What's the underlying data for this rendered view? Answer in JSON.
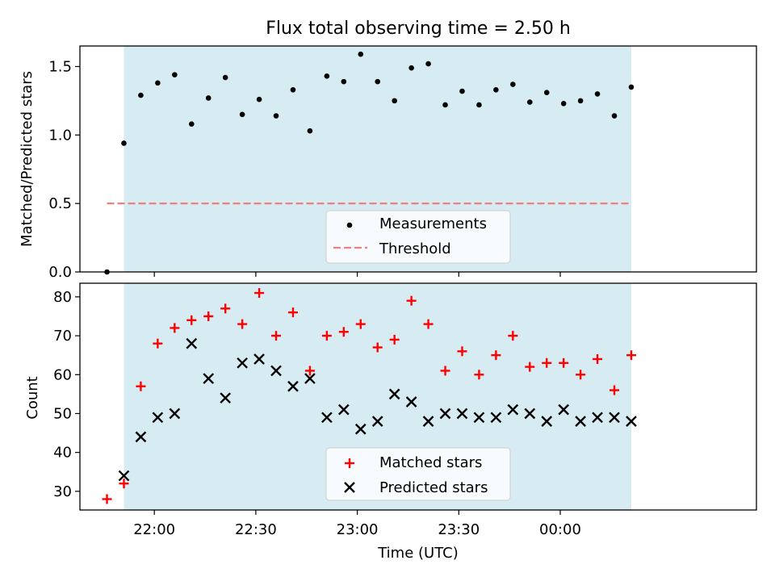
{
  "title": "Flux total observing time = 2.50 h",
  "colors": {
    "shade": "#add8e6",
    "measurement": "#000000",
    "threshold": "#f08080",
    "matched": "#ff0000",
    "predicted": "#000000"
  },
  "chart_data": [
    {
      "type": "scatter",
      "title": "Flux total observing time = 2.50 h",
      "xlabel": "",
      "ylabel": "Matched/Predicted stars",
      "xlim": [
        "21:38",
        "00:58"
      ],
      "ylim": [
        0,
        1.65
      ],
      "yticks": [
        0.0,
        0.5,
        1.0,
        1.5
      ],
      "ytick_labels": [
        "0.0",
        "0.5",
        "1.0",
        "1.5"
      ],
      "shaded_x_range": [
        "21:51",
        "00:21"
      ],
      "threshold": {
        "value": 0.5,
        "x_range": [
          "21:46",
          "00:21"
        ]
      },
      "legend": {
        "placement": "lower-center",
        "entries": [
          "Measurements",
          "Threshold"
        ]
      },
      "series": [
        {
          "name": "Measurements",
          "x": [
            "21:46",
            "21:51",
            "21:56",
            "22:01",
            "22:06",
            "22:11",
            "22:16",
            "22:21",
            "22:26",
            "22:31",
            "22:36",
            "22:41",
            "22:46",
            "22:51",
            "22:56",
            "23:01",
            "23:06",
            "23:11",
            "23:16",
            "23:21",
            "23:26",
            "23:31",
            "23:36",
            "23:41",
            "23:46",
            "23:51",
            "23:56",
            "00:01",
            "00:06",
            "00:11",
            "00:16",
            "00:21"
          ],
          "y": [
            0.0,
            0.94,
            1.29,
            1.38,
            1.44,
            1.08,
            1.27,
            1.42,
            1.15,
            1.26,
            1.14,
            1.33,
            1.03,
            1.43,
            1.39,
            1.59,
            1.39,
            1.25,
            1.49,
            1.52,
            1.22,
            1.32,
            1.22,
            1.33,
            1.37,
            1.24,
            1.31,
            1.23,
            1.25,
            1.3,
            1.14,
            1.35
          ]
        }
      ]
    },
    {
      "type": "scatter",
      "title": "",
      "xlabel": "Time (UTC)",
      "ylabel": "Count",
      "xlim": [
        "21:38",
        "00:58"
      ],
      "ylim": [
        25.2,
        83.5
      ],
      "yticks": [
        30,
        40,
        50,
        60,
        70,
        80
      ],
      "ytick_labels": [
        "30",
        "40",
        "50",
        "60",
        "70",
        "80"
      ],
      "xticks": [
        "22:00",
        "22:30",
        "23:00",
        "23:30",
        "00:00"
      ],
      "xtick_labels": [
        "22:00",
        "22:30",
        "23:00",
        "23:30",
        "00:00"
      ],
      "shaded_x_range": [
        "21:51",
        "00:21"
      ],
      "legend": {
        "placement": "lower-center",
        "entries": [
          "Matched stars",
          "Predicted stars"
        ]
      },
      "series": [
        {
          "name": "Matched stars",
          "x": [
            "21:46",
            "21:51",
            "21:56",
            "22:01",
            "22:06",
            "22:11",
            "22:16",
            "22:21",
            "22:26",
            "22:31",
            "22:36",
            "22:41",
            "22:46",
            "22:51",
            "22:56",
            "23:01",
            "23:06",
            "23:11",
            "23:16",
            "23:21",
            "23:26",
            "23:31",
            "23:36",
            "23:41",
            "23:46",
            "23:51",
            "23:56",
            "00:01",
            "00:06",
            "00:11",
            "00:16",
            "00:21"
          ],
          "y": [
            28,
            32,
            57,
            68,
            72,
            74,
            75,
            77,
            73,
            81,
            70,
            76,
            61,
            70,
            71,
            73,
            67,
            69,
            79,
            73,
            61,
            66,
            60,
            65,
            70,
            62,
            63,
            63,
            60,
            64,
            56,
            65
          ]
        },
        {
          "name": "Predicted stars",
          "x": [
            "21:51",
            "21:56",
            "22:01",
            "22:06",
            "22:11",
            "22:16",
            "22:21",
            "22:26",
            "22:31",
            "22:36",
            "22:41",
            "22:46",
            "22:51",
            "22:56",
            "23:01",
            "23:06",
            "23:11",
            "23:16",
            "23:21",
            "23:26",
            "23:31",
            "23:36",
            "23:41",
            "23:46",
            "23:51",
            "23:56",
            "00:01",
            "00:06",
            "00:11",
            "00:16",
            "00:21"
          ],
          "y": [
            34,
            44,
            49,
            50,
            68,
            59,
            54,
            63,
            64,
            61,
            57,
            59,
            49,
            51,
            46,
            48,
            55,
            53,
            48,
            50,
            50,
            49,
            49,
            51,
            50,
            48,
            51,
            48,
            49,
            49,
            48
          ]
        }
      ]
    }
  ]
}
